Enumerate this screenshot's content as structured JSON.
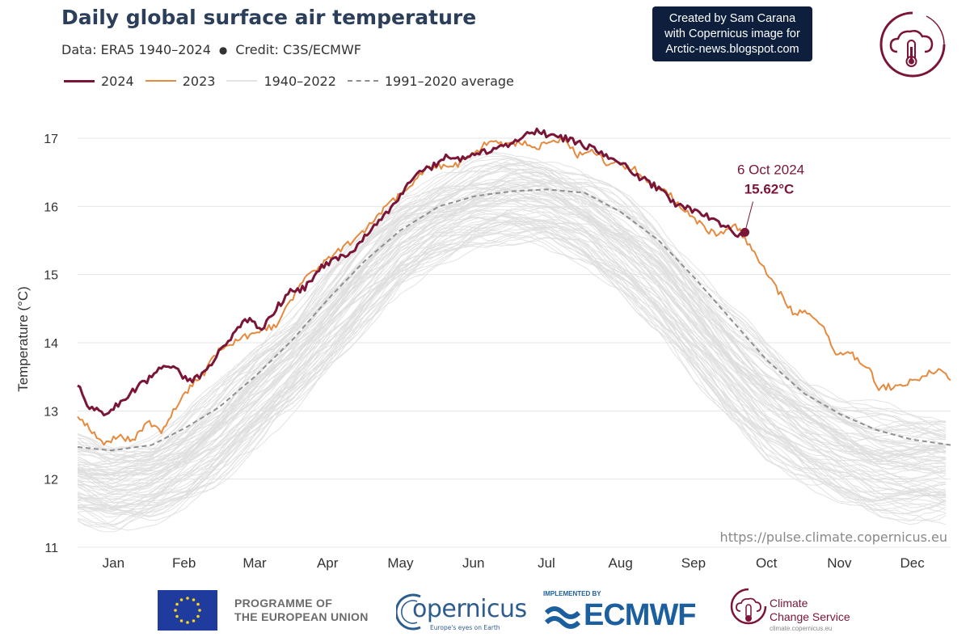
{
  "header": {
    "title": "Daily global surface air temperature",
    "subtitle_data": "Data: ERA5 1940–2024",
    "subtitle_sep": "●",
    "subtitle_credit": "Credit: C3S/ECMWF"
  },
  "legend": [
    {
      "label": "2024",
      "color": "#7a1537"
    },
    {
      "label": "2023",
      "color": "#e58a3e"
    },
    {
      "label": "1940–2022",
      "color": "#e3e3e3"
    },
    {
      "label": "1991–2020 average",
      "color": "#8f8f8f"
    }
  ],
  "credit_box": {
    "line1": "Created by Sam Carana",
    "line2": "with Copernicus image for",
    "line3": "Arctic-news.blogspot.com"
  },
  "footer": {
    "eu_line1": "PROGRAMME OF",
    "eu_line2": "THE EUROPEAN UNION",
    "copernicus_word": "opernicus",
    "copernicus_tagline": "Europe's eyes on Earth",
    "ecmwf_implemented": "IMPLEMENTED BY",
    "ecmwf_word": "ECMWF",
    "ccs_line1": "Climate",
    "ccs_line2": "Change Service",
    "ccs_url": "climate.copernicus.eu"
  },
  "chart_data": {
    "type": "line",
    "ylabel": "Temperature (°C)",
    "ylim": [
      11,
      17.5
    ],
    "yticks": [
      11,
      12,
      13,
      14,
      15,
      16,
      17
    ],
    "x_unit": "day of year",
    "xlim": [
      1,
      366
    ],
    "months": [
      "Jan",
      "Feb",
      "Mar",
      "Apr",
      "May",
      "Jun",
      "Jul",
      "Aug",
      "Sep",
      "Oct",
      "Nov",
      "Dec"
    ],
    "grid": true,
    "source_url": "https://pulse.climate.copernicus.eu",
    "annotation": {
      "date": "6 Oct 2024",
      "value_label": "15.62°C",
      "day": 280,
      "value": 15.62
    },
    "historical_band": {
      "name": "1940–2022",
      "x": [
        1,
        15,
        32,
        46,
        60,
        75,
        91,
        106,
        121,
        136,
        152,
        167,
        182,
        197,
        213,
        228,
        244,
        259,
        274,
        289,
        305,
        320,
        335,
        350,
        366
      ],
      "low": [
        11.45,
        11.3,
        11.4,
        11.65,
        12.0,
        12.5,
        13.05,
        13.65,
        14.25,
        14.8,
        15.2,
        15.45,
        15.5,
        15.45,
        15.2,
        14.75,
        14.15,
        13.5,
        12.9,
        12.35,
        11.95,
        11.7,
        11.5,
        11.45,
        11.45
      ],
      "high": [
        12.6,
        12.45,
        12.6,
        12.95,
        13.35,
        13.9,
        14.45,
        15.05,
        15.6,
        16.1,
        16.45,
        16.65,
        16.75,
        16.7,
        16.5,
        16.15,
        15.7,
        15.1,
        14.5,
        13.95,
        13.5,
        13.2,
        13.0,
        12.9,
        12.9
      ],
      "n_lines": 83
    },
    "series": [
      {
        "name": "1991–2020 average",
        "color": "#8f8f8f",
        "dashed": true,
        "x": [
          1,
          15,
          32,
          46,
          60,
          75,
          91,
          106,
          121,
          136,
          152,
          167,
          182,
          197,
          213,
          228,
          244,
          259,
          274,
          289,
          305,
          320,
          335,
          350,
          366
        ],
        "y": [
          12.47,
          12.42,
          12.5,
          12.75,
          13.05,
          13.5,
          14.05,
          14.65,
          15.2,
          15.65,
          16.0,
          16.15,
          16.22,
          16.25,
          16.2,
          15.92,
          15.5,
          14.95,
          14.35,
          13.75,
          13.25,
          12.95,
          12.72,
          12.58,
          12.5
        ]
      },
      {
        "name": "2023",
        "color": "#e58a3e",
        "dashed": false,
        "x": [
          1,
          6,
          12,
          18,
          24,
          30,
          36,
          42,
          48,
          54,
          60,
          66,
          72,
          78,
          84,
          90,
          96,
          102,
          108,
          114,
          120,
          126,
          132,
          138,
          144,
          150,
          156,
          162,
          168,
          174,
          180,
          186,
          192,
          198,
          204,
          210,
          216,
          222,
          228,
          234,
          240,
          246,
          252,
          258,
          264,
          270,
          276,
          282,
          288,
          294,
          300,
          306,
          312,
          318,
          324,
          330,
          336,
          342,
          348,
          354,
          360,
          366
        ],
        "y": [
          12.95,
          12.75,
          12.5,
          12.65,
          12.55,
          12.85,
          12.7,
          13.05,
          13.35,
          13.55,
          13.9,
          14.0,
          14.1,
          14.2,
          14.25,
          14.6,
          14.95,
          15.1,
          15.3,
          15.45,
          15.6,
          15.85,
          16.05,
          16.25,
          16.45,
          16.6,
          16.55,
          16.65,
          16.8,
          17.0,
          16.9,
          16.95,
          16.85,
          16.95,
          17.0,
          16.75,
          16.8,
          16.65,
          16.6,
          16.55,
          16.35,
          16.25,
          16.05,
          15.85,
          15.65,
          15.6,
          15.75,
          15.4,
          15.1,
          14.75,
          14.45,
          14.45,
          14.3,
          13.85,
          13.85,
          13.7,
          13.35,
          13.35,
          13.4,
          13.5,
          13.6,
          13.45
        ]
      },
      {
        "name": "2024",
        "color": "#7a1537",
        "dashed": false,
        "x": [
          1,
          6,
          12,
          18,
          24,
          30,
          36,
          42,
          48,
          54,
          60,
          66,
          72,
          78,
          84,
          90,
          96,
          102,
          108,
          114,
          120,
          126,
          132,
          138,
          144,
          150,
          156,
          162,
          168,
          174,
          180,
          186,
          192,
          198,
          204,
          210,
          216,
          222,
          228,
          234,
          240,
          246,
          252,
          258,
          264,
          270,
          276,
          280
        ],
        "y": [
          13.4,
          13.05,
          12.95,
          13.1,
          13.3,
          13.45,
          13.65,
          13.6,
          13.45,
          13.55,
          13.85,
          14.1,
          14.35,
          14.2,
          14.5,
          14.75,
          14.8,
          15.1,
          15.2,
          15.3,
          15.5,
          15.75,
          15.95,
          16.25,
          16.5,
          16.6,
          16.75,
          16.7,
          16.75,
          16.85,
          16.9,
          17.0,
          17.1,
          17.05,
          17.0,
          16.95,
          16.85,
          16.75,
          16.65,
          16.45,
          16.35,
          16.2,
          16.0,
          15.95,
          15.85,
          15.75,
          15.6,
          15.62
        ]
      }
    ]
  }
}
